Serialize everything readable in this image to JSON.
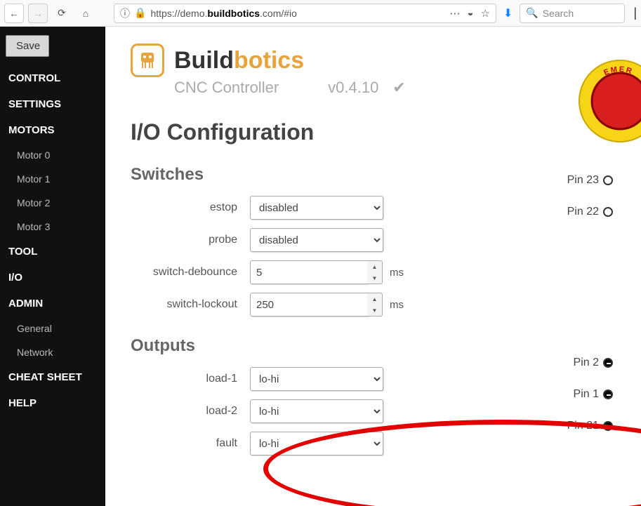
{
  "browser": {
    "url_prefix": "https://demo.",
    "url_bold": "buildbotics",
    "url_suffix": ".com/#io",
    "search_placeholder": "Search"
  },
  "sidebar": {
    "save": "Save",
    "items": [
      {
        "label": "CONTROL",
        "type": "main"
      },
      {
        "label": "SETTINGS",
        "type": "main"
      },
      {
        "label": "MOTORS",
        "type": "main"
      },
      {
        "label": "Motor 0",
        "type": "sub"
      },
      {
        "label": "Motor 1",
        "type": "sub"
      },
      {
        "label": "Motor 2",
        "type": "sub"
      },
      {
        "label": "Motor 3",
        "type": "sub"
      },
      {
        "label": "TOOL",
        "type": "main"
      },
      {
        "label": "I/O",
        "type": "main"
      },
      {
        "label": "ADMIN",
        "type": "main"
      },
      {
        "label": "General",
        "type": "sub"
      },
      {
        "label": "Network",
        "type": "sub"
      },
      {
        "label": "CHEAT SHEET",
        "type": "main"
      },
      {
        "label": "HELP",
        "type": "main"
      }
    ]
  },
  "header": {
    "brand_pre": "Build",
    "brand_post": "botics",
    "subtitle": "CNC Controller",
    "version": "v0.4.10"
  },
  "page": {
    "title": "I/O Configuration",
    "switches_title": "Switches",
    "outputs_title": "Outputs",
    "switches": [
      {
        "label": "estop",
        "type": "select",
        "value": "disabled",
        "pin": "Pin 23",
        "pin_style": "open"
      },
      {
        "label": "probe",
        "type": "select",
        "value": "disabled",
        "pin": "Pin 22",
        "pin_style": "open"
      },
      {
        "label": "switch-debounce",
        "type": "number",
        "value": "5",
        "unit": "ms"
      },
      {
        "label": "switch-lockout",
        "type": "number",
        "value": "250",
        "unit": "ms"
      }
    ],
    "outputs": [
      {
        "label": "load-1",
        "type": "select",
        "value": "lo-hi",
        "pin": "Pin 2",
        "pin_style": "filled"
      },
      {
        "label": "load-2",
        "type": "select",
        "value": "lo-hi",
        "pin": "Pin 1",
        "pin_style": "filled"
      },
      {
        "label": "fault",
        "type": "select",
        "value": "lo-hi",
        "pin": "Pin 21",
        "pin_style": "filled"
      }
    ]
  },
  "estop_label": "EMER"
}
